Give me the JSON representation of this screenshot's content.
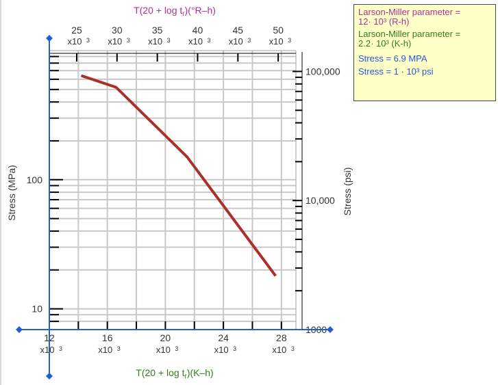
{
  "chart_data": {
    "type": "line",
    "top_axis": {
      "label_prefix": "T(20 + log  t",
      "label_sub": "r",
      "label_suffix": ")(°R–h)",
      "ticks": [
        {
          "value": 25,
          "multiplier": "x10"
        },
        {
          "value": 30,
          "multiplier": "x10"
        },
        {
          "value": 35,
          "multiplier": "x10"
        },
        {
          "value": 40,
          "multiplier": "x10"
        },
        {
          "value": 45,
          "multiplier": "x10"
        },
        {
          "value": 50,
          "multiplier": "x10"
        }
      ],
      "exponent": "3",
      "color": "#b0309a"
    },
    "bottom_axis": {
      "label_prefix": "T(20 + log  t",
      "label_sub": "r",
      "label_suffix": ")(K–h)",
      "ticks": [
        {
          "value": 12,
          "multiplier": "x10"
        },
        {
          "value": 16,
          "multiplier": "x10"
        },
        {
          "value": 20,
          "multiplier": "x10"
        },
        {
          "value": 24,
          "multiplier": "x10"
        },
        {
          "value": 28,
          "multiplier": "x10"
        }
      ],
      "exponent": "3",
      "xlim": [
        12,
        29
      ],
      "color": "#2e7d1e"
    },
    "left_axis": {
      "label": "Stress (MPa)",
      "scale": "log",
      "ylim": [
        6.9,
        1000
      ],
      "tick_labels": [
        {
          "value": 100,
          "text": "100"
        },
        {
          "value": 10,
          "text": "10"
        }
      ]
    },
    "right_axis": {
      "label": "Stress (psi)",
      "scale": "log",
      "ylim": [
        1000,
        145000
      ],
      "tick_labels": [
        {
          "value": 100000,
          "text": "100,000"
        },
        {
          "value": 10000,
          "text": "10,000"
        },
        {
          "value": 1000,
          "text": "1000"
        }
      ]
    },
    "series": [
      {
        "color": "#a8322a",
        "x": [
          14.2,
          16.6,
          21.5,
          27.6
        ],
        "y": [
          640,
          520,
          150,
          18
        ]
      }
    ],
    "grid": true,
    "axis_color": "#1f5fd6",
    "line_color": "#a8322a"
  },
  "info": {
    "lm_rh": "Larson-Miller parameter =\n12· 10³ (R-h)",
    "lm_kh": "Larson-Miller parameter =\n2.2· 10³ (K-h)",
    "stress_mpa": "Stress = 6.9 MPA",
    "stress_psi": "Stress = 1 · 10³ psi"
  }
}
